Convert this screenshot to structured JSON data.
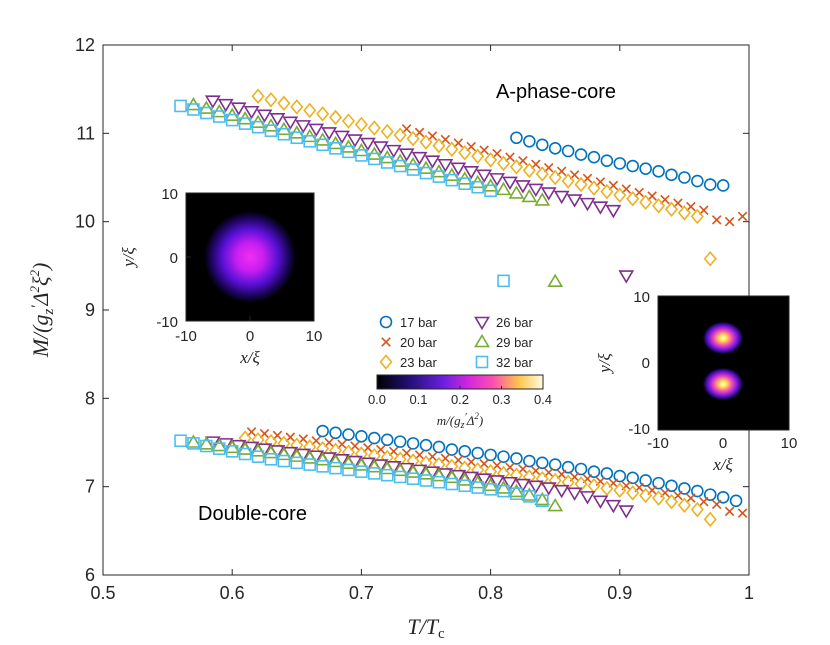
{
  "chart_data": {
    "type": "scatter",
    "xlabel": "T/T_c",
    "ylabel": "M/(g'_z Δ²ξ²)",
    "xlim": [
      0.5,
      1.0
    ],
    "ylim": [
      6,
      12
    ],
    "xticks": [
      "0.5",
      "0.6",
      "0.7",
      "0.8",
      "0.9",
      "1"
    ],
    "yticks": [
      "6",
      "7",
      "8",
      "9",
      "10",
      "11",
      "12"
    ],
    "grid": false,
    "legend_position": "center",
    "annotations": [
      "A-phase-core",
      "Double-core"
    ],
    "series": [
      {
        "name": "17 bar",
        "marker": "circle",
        "color": "#0072BD",
        "upper": {
          "x": [
            0.82,
            0.83,
            0.84,
            0.85,
            0.86,
            0.87,
            0.88,
            0.89,
            0.9,
            0.91,
            0.92,
            0.93,
            0.94,
            0.95,
            0.96,
            0.97,
            0.98
          ],
          "y": [
            10.95,
            10.91,
            10.87,
            10.83,
            10.8,
            10.76,
            10.73,
            10.69,
            10.66,
            10.63,
            10.6,
            10.57,
            10.53,
            10.5,
            10.46,
            10.42,
            10.41
          ]
        },
        "lower": {
          "x": [
            0.67,
            0.68,
            0.69,
            0.7,
            0.71,
            0.72,
            0.73,
            0.74,
            0.75,
            0.76,
            0.77,
            0.78,
            0.79,
            0.8,
            0.81,
            0.82,
            0.83,
            0.84,
            0.85,
            0.86,
            0.87,
            0.88,
            0.89,
            0.9,
            0.91,
            0.92,
            0.93,
            0.94,
            0.95,
            0.96,
            0.97,
            0.98,
            0.99
          ],
          "y": [
            7.63,
            7.61,
            7.59,
            7.57,
            7.55,
            7.53,
            7.51,
            7.49,
            7.47,
            7.45,
            7.42,
            7.4,
            7.38,
            7.36,
            7.34,
            7.32,
            7.29,
            7.27,
            7.25,
            7.22,
            7.2,
            7.17,
            7.15,
            7.12,
            7.1,
            7.07,
            7.04,
            7.01,
            6.98,
            6.95,
            6.91,
            6.88,
            6.84
          ]
        }
      },
      {
        "name": "20 bar",
        "marker": "x",
        "color": "#D95319",
        "upper": {
          "x": [
            0.735,
            0.745,
            0.755,
            0.765,
            0.775,
            0.785,
            0.795,
            0.805,
            0.815,
            0.825,
            0.835,
            0.845,
            0.855,
            0.865,
            0.875,
            0.885,
            0.895,
            0.905,
            0.915,
            0.925,
            0.935,
            0.945,
            0.955,
            0.965,
            0.975,
            0.985,
            0.995
          ],
          "y": [
            11.05,
            11.01,
            10.97,
            10.93,
            10.89,
            10.85,
            10.81,
            10.77,
            10.73,
            10.69,
            10.65,
            10.61,
            10.57,
            10.53,
            10.49,
            10.45,
            10.41,
            10.37,
            10.33,
            10.29,
            10.25,
            10.21,
            10.17,
            10.13,
            10.02,
            10.0,
            10.06
          ]
        },
        "lower": {
          "x": [
            0.615,
            0.625,
            0.635,
            0.645,
            0.655,
            0.665,
            0.675,
            0.685,
            0.695,
            0.705,
            0.715,
            0.725,
            0.735,
            0.745,
            0.755,
            0.765,
            0.775,
            0.785,
            0.795,
            0.805,
            0.815,
            0.825,
            0.835,
            0.845,
            0.855,
            0.865,
            0.875,
            0.885,
            0.895,
            0.905,
            0.915,
            0.925,
            0.935,
            0.945,
            0.955,
            0.965,
            0.975,
            0.985,
            0.995
          ],
          "y": [
            7.62,
            7.6,
            7.58,
            7.56,
            7.54,
            7.52,
            7.5,
            7.48,
            7.46,
            7.44,
            7.42,
            7.4,
            7.38,
            7.36,
            7.34,
            7.32,
            7.3,
            7.28,
            7.26,
            7.24,
            7.22,
            7.2,
            7.18,
            7.16,
            7.14,
            7.11,
            7.09,
            7.06,
            7.04,
            7.01,
            6.99,
            6.96,
            6.93,
            6.9,
            6.87,
            6.83,
            6.8,
            6.72,
            6.7
          ]
        }
      },
      {
        "name": "23 bar",
        "marker": "diamond",
        "color": "#EDB120",
        "upper": {
          "x": [
            0.62,
            0.63,
            0.64,
            0.65,
            0.66,
            0.67,
            0.68,
            0.69,
            0.7,
            0.71,
            0.72,
            0.73,
            0.74,
            0.75,
            0.76,
            0.77,
            0.78,
            0.79,
            0.8,
            0.81,
            0.82,
            0.83,
            0.84,
            0.85,
            0.86,
            0.87,
            0.88,
            0.89,
            0.9,
            0.91,
            0.92,
            0.93,
            0.94,
            0.95,
            0.96,
            0.97
          ],
          "y": [
            11.42,
            11.38,
            11.34,
            11.3,
            11.26,
            11.22,
            11.18,
            11.14,
            11.1,
            11.06,
            11.02,
            10.98,
            10.94,
            10.9,
            10.86,
            10.82,
            10.78,
            10.74,
            10.7,
            10.66,
            10.62,
            10.58,
            10.54,
            10.5,
            10.46,
            10.42,
            10.38,
            10.34,
            10.3,
            10.26,
            10.22,
            10.18,
            10.14,
            10.1,
            10.06,
            9.58
          ]
        },
        "lower": {
          "x": [
            0.61,
            0.62,
            0.63,
            0.64,
            0.65,
            0.66,
            0.67,
            0.68,
            0.69,
            0.7,
            0.71,
            0.72,
            0.73,
            0.74,
            0.75,
            0.76,
            0.77,
            0.78,
            0.79,
            0.8,
            0.81,
            0.82,
            0.83,
            0.84,
            0.85,
            0.86,
            0.87,
            0.88,
            0.89,
            0.9,
            0.91,
            0.92,
            0.93,
            0.94,
            0.95,
            0.96,
            0.97
          ],
          "y": [
            7.55,
            7.53,
            7.51,
            7.49,
            7.47,
            7.45,
            7.43,
            7.41,
            7.39,
            7.37,
            7.35,
            7.33,
            7.31,
            7.29,
            7.27,
            7.25,
            7.23,
            7.21,
            7.19,
            7.17,
            7.15,
            7.13,
            7.11,
            7.09,
            7.07,
            7.05,
            7.03,
            7.01,
            6.98,
            6.96,
            6.93,
            6.9,
            6.87,
            6.83,
            6.79,
            6.74,
            6.63
          ]
        }
      },
      {
        "name": "26 bar",
        "marker": "triangle-down",
        "color": "#7E2F8E",
        "upper": {
          "x": [
            0.585,
            0.595,
            0.605,
            0.615,
            0.625,
            0.635,
            0.645,
            0.655,
            0.665,
            0.675,
            0.685,
            0.695,
            0.705,
            0.715,
            0.725,
            0.735,
            0.745,
            0.755,
            0.765,
            0.775,
            0.785,
            0.795,
            0.805,
            0.815,
            0.825,
            0.835,
            0.845,
            0.855,
            0.865,
            0.875,
            0.885,
            0.895,
            0.905
          ],
          "y": [
            11.37,
            11.33,
            11.29,
            11.25,
            11.21,
            11.17,
            11.13,
            11.09,
            11.05,
            11.01,
            10.97,
            10.93,
            10.89,
            10.85,
            10.81,
            10.77,
            10.73,
            10.69,
            10.65,
            10.61,
            10.57,
            10.53,
            10.49,
            10.45,
            10.41,
            10.37,
            10.33,
            10.29,
            10.25,
            10.21,
            10.17,
            10.13,
            9.39
          ]
        },
        "lower": {
          "x": [
            0.585,
            0.595,
            0.605,
            0.615,
            0.625,
            0.635,
            0.645,
            0.655,
            0.665,
            0.675,
            0.685,
            0.695,
            0.705,
            0.715,
            0.725,
            0.735,
            0.745,
            0.755,
            0.765,
            0.775,
            0.785,
            0.795,
            0.805,
            0.815,
            0.825,
            0.835,
            0.845,
            0.855,
            0.865,
            0.875,
            0.885,
            0.895,
            0.905
          ],
          "y": [
            7.51,
            7.49,
            7.47,
            7.45,
            7.43,
            7.41,
            7.39,
            7.37,
            7.35,
            7.33,
            7.31,
            7.29,
            7.27,
            7.25,
            7.23,
            7.21,
            7.19,
            7.17,
            7.15,
            7.13,
            7.11,
            7.09,
            7.07,
            7.05,
            7.03,
            7.01,
            6.99,
            6.96,
            6.93,
            6.89,
            6.84,
            6.79,
            6.73
          ]
        }
      },
      {
        "name": "29 bar",
        "marker": "triangle-up",
        "color": "#77AC30",
        "upper": {
          "x": [
            0.57,
            0.58,
            0.59,
            0.6,
            0.61,
            0.62,
            0.63,
            0.64,
            0.65,
            0.66,
            0.67,
            0.68,
            0.69,
            0.7,
            0.71,
            0.72,
            0.73,
            0.74,
            0.75,
            0.76,
            0.77,
            0.78,
            0.79,
            0.8,
            0.81,
            0.82,
            0.83,
            0.84,
            0.85
          ],
          "y": [
            11.32,
            11.28,
            11.24,
            11.2,
            11.16,
            11.12,
            11.08,
            11.04,
            11.0,
            10.96,
            10.92,
            10.88,
            10.84,
            10.8,
            10.76,
            10.72,
            10.68,
            10.64,
            10.6,
            10.56,
            10.52,
            10.48,
            10.44,
            10.4,
            10.36,
            10.32,
            10.28,
            10.24,
            9.32
          ]
        },
        "lower": {
          "x": [
            0.57,
            0.58,
            0.59,
            0.6,
            0.61,
            0.62,
            0.63,
            0.64,
            0.65,
            0.66,
            0.67,
            0.68,
            0.69,
            0.7,
            0.71,
            0.72,
            0.73,
            0.74,
            0.75,
            0.76,
            0.77,
            0.78,
            0.79,
            0.8,
            0.81,
            0.82,
            0.83,
            0.84,
            0.85
          ],
          "y": [
            7.5,
            7.48,
            7.46,
            7.44,
            7.42,
            7.4,
            7.38,
            7.36,
            7.34,
            7.32,
            7.3,
            7.28,
            7.26,
            7.24,
            7.22,
            7.2,
            7.18,
            7.16,
            7.14,
            7.12,
            7.1,
            7.07,
            7.04,
            7.01,
            6.98,
            6.94,
            6.9,
            6.85,
            6.78
          ]
        }
      },
      {
        "name": "32 bar",
        "marker": "square",
        "color": "#4DBEEE",
        "upper": {
          "x": [
            0.56,
            0.57,
            0.58,
            0.59,
            0.6,
            0.61,
            0.62,
            0.63,
            0.64,
            0.65,
            0.66,
            0.67,
            0.68,
            0.69,
            0.7,
            0.71,
            0.72,
            0.73,
            0.74,
            0.75,
            0.76,
            0.77,
            0.78,
            0.79,
            0.8,
            0.81
          ],
          "y": [
            11.31,
            11.27,
            11.23,
            11.19,
            11.15,
            11.11,
            11.07,
            11.03,
            10.99,
            10.95,
            10.91,
            10.87,
            10.83,
            10.79,
            10.75,
            10.71,
            10.67,
            10.63,
            10.59,
            10.55,
            10.51,
            10.47,
            10.43,
            10.39,
            10.35,
            9.33
          ]
        },
        "lower": {
          "x": [
            0.56,
            0.57,
            0.58,
            0.59,
            0.6,
            0.61,
            0.62,
            0.63,
            0.64,
            0.65,
            0.66,
            0.67,
            0.68,
            0.69,
            0.7,
            0.71,
            0.72,
            0.73,
            0.74,
            0.75,
            0.76,
            0.77,
            0.78,
            0.79,
            0.8,
            0.81,
            0.82,
            0.83,
            0.84
          ],
          "y": [
            7.52,
            7.49,
            7.46,
            7.43,
            7.4,
            7.37,
            7.34,
            7.31,
            7.29,
            7.27,
            7.25,
            7.23,
            7.21,
            7.19,
            7.17,
            7.15,
            7.13,
            7.11,
            7.09,
            7.07,
            7.05,
            7.03,
            7.01,
            6.99,
            6.97,
            6.95,
            6.92,
            6.89,
            6.84
          ]
        }
      }
    ],
    "insets": [
      {
        "name": "A-phase-core density map",
        "xlabel": "x/ξ",
        "ylabel": "y/ξ",
        "xticks": [
          "-10",
          "0",
          "10"
        ],
        "yticks": [
          "10",
          "0",
          "-10"
        ],
        "cores": 1
      },
      {
        "name": "Double-core density map",
        "xlabel": "x/ξ",
        "ylabel": "y/ξ",
        "xticks": [
          "-10",
          "0",
          "10"
        ],
        "yticks": [
          "10",
          "0",
          "-10"
        ],
        "cores": 2
      }
    ],
    "colorbar": {
      "ticks": [
        "0.0",
        "0.1",
        "0.2",
        "0.3",
        "0.4"
      ],
      "range": [
        0.0,
        0.4
      ],
      "colormap": "hot-magenta",
      "label": "m/(g'_z Δ²)"
    }
  }
}
